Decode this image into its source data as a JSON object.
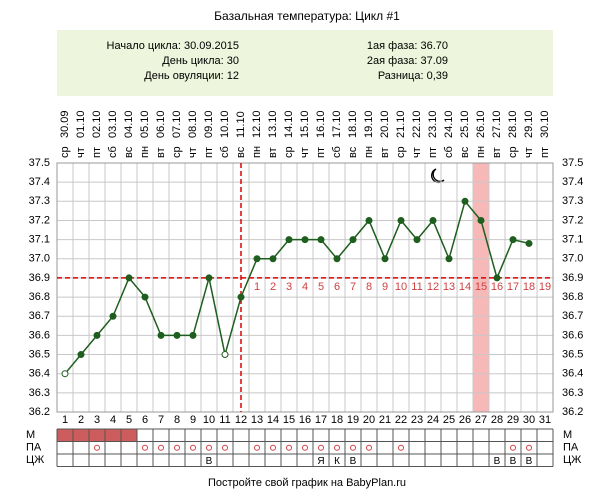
{
  "title": "Базальная температура: Цикл #1",
  "summary": {
    "left": [
      "Начало цикла: 30.09.2015",
      "День цикла: 30",
      "День овуляции: 12"
    ],
    "right": [
      "1ая фаза: 36.70",
      "2ая фаза: 37.09",
      "Разница: 0,39"
    ]
  },
  "chart_data": {
    "type": "line",
    "weekdays": [
      "ср",
      "чт",
      "пт",
      "сб",
      "вс",
      "пн",
      "вт",
      "ср",
      "чт",
      "пт",
      "сб",
      "вс",
      "пн",
      "вт",
      "ср",
      "чт",
      "пт",
      "сб",
      "вс",
      "пн",
      "вт",
      "ср",
      "чт",
      "пт",
      "сб",
      "вс",
      "пн",
      "вт",
      "ср",
      "чт",
      "пт"
    ],
    "dates": [
      "30.09",
      "01.10",
      "02.10",
      "03.10",
      "04.10",
      "05.10",
      "06.10",
      "07.10",
      "08.10",
      "09.10",
      "10.10",
      "11.10",
      "12.10",
      "13.10",
      "14.10",
      "15.10",
      "16.10",
      "17.10",
      "18.10",
      "19.10",
      "20.10",
      "21.10",
      "22.10",
      "23.10",
      "24.10",
      "25.10",
      "26.10",
      "27.10",
      "28.10",
      "29.10",
      "30.10"
    ],
    "x": [
      1,
      2,
      3,
      4,
      5,
      6,
      7,
      8,
      9,
      10,
      11,
      12,
      13,
      14,
      15,
      16,
      17,
      18,
      19,
      20,
      21,
      22,
      23,
      24,
      25,
      26,
      27,
      28,
      29,
      30,
      31
    ],
    "values": [
      36.4,
      36.5,
      36.6,
      36.7,
      36.9,
      36.8,
      36.6,
      36.6,
      36.6,
      36.9,
      36.5,
      36.8,
      37.0,
      37.0,
      37.1,
      37.1,
      37.1,
      37.0,
      37.1,
      37.2,
      37.0,
      37.2,
      37.1,
      37.2,
      37.0,
      37.3,
      37.2,
      36.9,
      37.1,
      37.08,
      null
    ],
    "hollow_days": [
      1,
      11
    ],
    "color": "#1e5e1e",
    "ylim": [
      36.2,
      37.5
    ],
    "yticks": [
      36.2,
      36.3,
      36.4,
      36.5,
      36.6,
      36.7,
      36.8,
      36.9,
      {
        "value": 37.0,
        "label": "37.0"
      },
      37.1,
      37.2,
      37.3,
      37.4,
      37.5
    ],
    "grid": true,
    "coverline": 36.9,
    "ovulation_day": 12,
    "highlight_day": 27,
    "phase_numbers": [
      1,
      2,
      3,
      4,
      5,
      6,
      7,
      8,
      9,
      10,
      11,
      12,
      13,
      14,
      15,
      16,
      17,
      18,
      19
    ],
    "row_labels": [
      "М",
      "ПА",
      "ЦЖ"
    ],
    "menstruation_days": [
      1,
      2,
      3,
      4,
      5
    ],
    "pa_days": [
      3,
      6,
      7,
      8,
      9,
      10,
      11,
      13,
      14,
      15,
      16,
      17,
      18,
      19,
      20,
      22,
      29,
      30
    ],
    "cervical": [
      null,
      null,
      null,
      null,
      null,
      null,
      null,
      null,
      null,
      "В",
      null,
      null,
      null,
      null,
      null,
      null,
      "Я",
      "К",
      "В",
      null,
      null,
      null,
      null,
      null,
      null,
      null,
      null,
      "В",
      "В",
      "В",
      null
    ]
  },
  "footer": "Постройте свой график на BabyPlan.ru"
}
